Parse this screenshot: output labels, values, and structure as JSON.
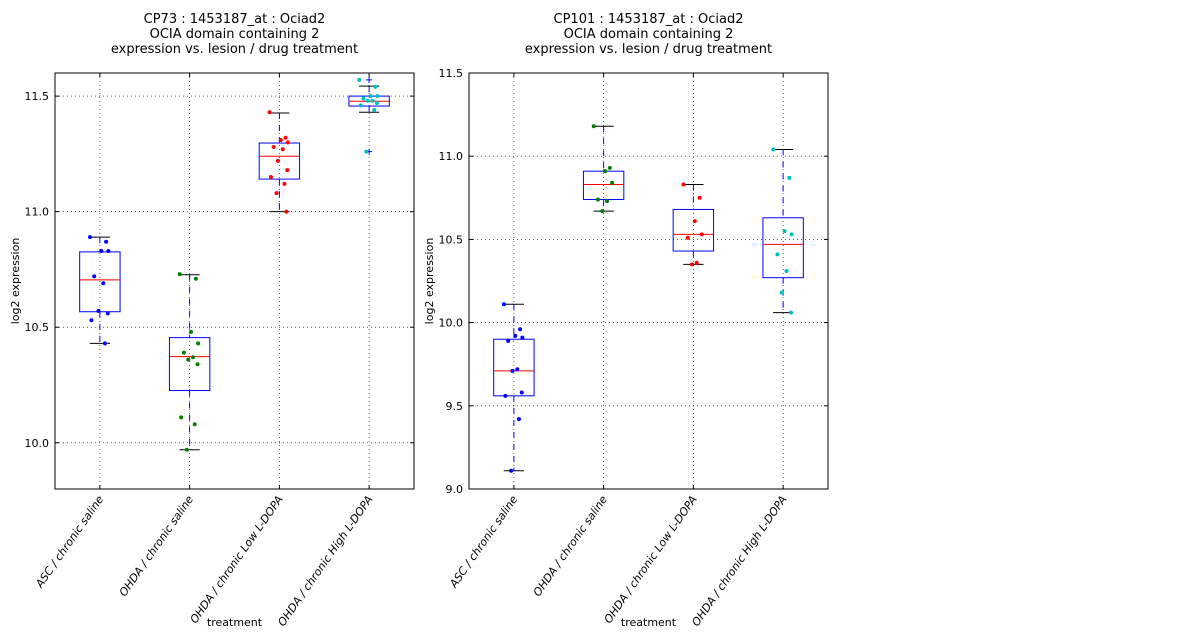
{
  "chart_data": [
    {
      "type": "box",
      "title": [
        "CP73 : 1453187_at : Ociad2",
        "OCIA domain containing 2",
        "expression vs. lesion / drug treatment"
      ],
      "xlabel": "treatment",
      "ylabel": "log2 expression",
      "ylim": [
        9.8,
        11.6
      ],
      "yticks": [
        "10.0",
        "10.5",
        "11.0",
        "11.5"
      ],
      "ytick_values": [
        10.0,
        10.5,
        11.0,
        11.5
      ],
      "grid": true,
      "categories": [
        "ASC / chronic saline",
        "OHDA / chronic saline",
        "OHDA / chronic Low L-DOPA",
        "OHDA / chronic High L-DOPA"
      ],
      "boxes": [
        {
          "whisker_low": 10.43,
          "q1": 10.567,
          "median": 10.705,
          "q3": 10.826,
          "whisker_high": 10.89,
          "fliers": [],
          "color": "#0000ff",
          "points": [
            10.89,
            10.87,
            10.83,
            10.83,
            10.72,
            10.69,
            10.57,
            10.56,
            10.53,
            10.43
          ]
        },
        {
          "whisker_low": 9.97,
          "q1": 10.226,
          "median": 10.373,
          "q3": 10.455,
          "whisker_high": 10.727,
          "fliers": [],
          "color": "#008000",
          "points": [
            10.73,
            10.71,
            10.48,
            10.43,
            10.39,
            10.37,
            10.36,
            10.34,
            10.11,
            10.08,
            9.97
          ]
        },
        {
          "whisker_low": 11.0,
          "q1": 11.141,
          "median": 11.24,
          "q3": 11.297,
          "whisker_high": 11.427,
          "fliers": [],
          "color": "#ff0000",
          "points": [
            11.43,
            11.32,
            11.31,
            11.3,
            11.28,
            11.27,
            11.22,
            11.18,
            11.15,
            11.12,
            11.08,
            11.0
          ]
        },
        {
          "whisker_low": 11.43,
          "q1": 11.457,
          "median": 11.478,
          "q3": 11.5,
          "whisker_high": 11.543,
          "fliers": [
            11.57,
            11.26
          ],
          "color": "#00bfbf",
          "points": [
            11.57,
            11.54,
            11.5,
            11.5,
            11.49,
            11.48,
            11.48,
            11.47,
            11.46,
            11.44,
            11.26
          ]
        }
      ]
    },
    {
      "type": "box",
      "title": [
        "CP101 : 1453187_at : Ociad2",
        "OCIA domain containing 2",
        "expression vs. lesion / drug treatment"
      ],
      "xlabel": "treatment",
      "ylabel": "log2 expression",
      "ylim": [
        9.0,
        11.5
      ],
      "yticks": [
        "9.0",
        "9.5",
        "10.0",
        "10.5",
        "11.0",
        "11.5"
      ],
      "ytick_values": [
        9.0,
        9.5,
        10.0,
        10.5,
        11.0,
        11.5
      ],
      "grid": true,
      "categories": [
        "ASC / chronic saline",
        "OHDA / chronic saline",
        "OHDA / chronic Low L-DOPA",
        "OHDA / chronic High L-DOPA"
      ],
      "boxes": [
        {
          "whisker_low": 9.11,
          "q1": 9.56,
          "median": 9.71,
          "q3": 9.9,
          "whisker_high": 10.11,
          "fliers": [],
          "color": "#0000ff",
          "points": [
            10.11,
            9.96,
            9.92,
            9.91,
            9.89,
            9.72,
            9.71,
            9.58,
            9.56,
            9.42,
            9.11
          ]
        },
        {
          "whisker_low": 10.67,
          "q1": 10.74,
          "median": 10.83,
          "q3": 10.91,
          "whisker_high": 11.18,
          "fliers": [],
          "color": "#008000",
          "points": [
            11.18,
            10.93,
            10.91,
            10.84,
            10.74,
            10.73,
            10.67
          ]
        },
        {
          "whisker_low": 10.35,
          "q1": 10.43,
          "median": 10.53,
          "q3": 10.68,
          "whisker_high": 10.83,
          "fliers": [],
          "color": "#ff0000",
          "points": [
            10.83,
            10.75,
            10.61,
            10.53,
            10.51,
            10.36,
            10.35
          ]
        },
        {
          "whisker_low": 10.06,
          "q1": 10.27,
          "median": 10.47,
          "q3": 10.63,
          "whisker_high": 11.04,
          "fliers": [],
          "color": "#00bfbf",
          "points": [
            11.04,
            10.87,
            10.55,
            10.53,
            10.41,
            10.31,
            10.18,
            10.06
          ]
        }
      ]
    }
  ]
}
